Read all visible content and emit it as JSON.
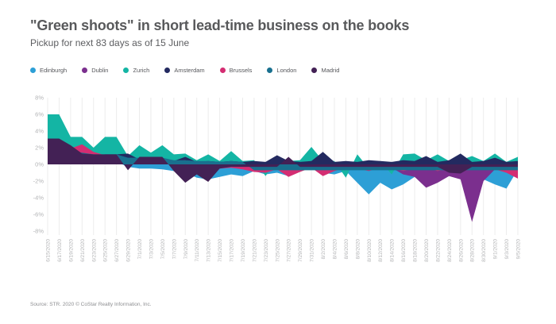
{
  "header": {
    "title": "\"Green shoots\" in short lead-time business on the books",
    "subtitle": "Pickup for next 83 days as of 15 June"
  },
  "source": "Source: STR. 2020 © CoStar Realty Information, Inc.",
  "chart_data": {
    "type": "area",
    "style": "overlapping layered areas (painted in z-order, baseline 0, not stacked)",
    "title": "\"Green shoots\" in short lead-time business on the books",
    "subtitle": "Pickup for next 83 days as of 15 June",
    "xlabel": "",
    "ylabel": "",
    "ylim": [
      -8,
      8
    ],
    "ytick_labels": [
      "8%",
      "6%",
      "4%",
      "2%",
      "0%",
      "-2%",
      "-4%",
      "-6%",
      "-8%"
    ],
    "grid": "vertical gridlines at every x tick, no horizontal gridlines",
    "legend_position": "top-left above plot",
    "x": [
      "6/15/2020",
      "6/17/2020",
      "6/19/2020",
      "6/21/2020",
      "6/23/2020",
      "6/25/2020",
      "6/27/2020",
      "6/29/2020",
      "7/1/2020",
      "7/3/2020",
      "7/5/2020",
      "7/7/2020",
      "7/9/2020",
      "7/11/2020",
      "7/13/2020",
      "7/15/2020",
      "7/17/2020",
      "7/19/2020",
      "7/21/2020",
      "7/23/2020",
      "7/25/2020",
      "7/27/2020",
      "7/29/2020",
      "7/31/2020",
      "8/2/2020",
      "8/4/2020",
      "8/6/2020",
      "8/8/2020",
      "8/10/2020",
      "8/12/2020",
      "8/14/2020",
      "8/16/2020",
      "8/18/2020",
      "8/20/2020",
      "8/22/2020",
      "8/24/2020",
      "8/26/2020",
      "8/28/2020",
      "8/30/2020",
      "9/1/2020",
      "9/3/2020",
      "9/5/2020"
    ],
    "z_order": [
      "Edinburgh",
      "Dublin",
      "Zurich",
      "Amsterdam",
      "Brussels",
      "London",
      "Madrid"
    ],
    "series": [
      {
        "name": "Edinburgh",
        "color": "#2D9FD6",
        "values": [
          0.5,
          0.5,
          0.4,
          0.3,
          0.3,
          0.3,
          0.3,
          -0.3,
          -0.5,
          -0.5,
          -0.6,
          -0.8,
          -1.0,
          -1.6,
          -1.8,
          -1.5,
          -1.2,
          -1.4,
          -0.8,
          -1.2,
          -1.0,
          -1.4,
          -0.8,
          -0.5,
          -1.0,
          -1.2,
          -0.8,
          -2.2,
          -3.6,
          -2.2,
          -3.0,
          -2.4,
          -1.5,
          -0.8,
          -1.5,
          -0.8,
          -1.0,
          -1.5,
          -1.8,
          -2.4,
          -2.9,
          -0.6
        ]
      },
      {
        "name": "Dublin",
        "color": "#7B2F8E",
        "values": [
          2.6,
          2.6,
          2.1,
          1.9,
          1.3,
          1.8,
          1.8,
          0.8,
          0.9,
          0.8,
          0.8,
          0.4,
          0.3,
          0.3,
          0.4,
          0.3,
          0.3,
          0.3,
          -0.7,
          -0.5,
          -0.4,
          -0.4,
          -0.5,
          -0.3,
          -0.4,
          -0.4,
          -0.4,
          -0.4,
          -0.5,
          -0.4,
          -0.4,
          -1.2,
          -1.5,
          -2.8,
          -2.2,
          -1.4,
          -1.8,
          -6.9,
          -2.0,
          -0.6,
          -0.5,
          -0.5
        ]
      },
      {
        "name": "Zurich",
        "color": "#14B5A4",
        "values": [
          6.0,
          6.0,
          3.3,
          3.3,
          2.0,
          3.3,
          3.3,
          1.0,
          2.3,
          1.4,
          2.3,
          1.2,
          1.3,
          0.5,
          1.2,
          0.4,
          1.6,
          0.4,
          0.5,
          -1.4,
          0.6,
          0.4,
          0.5,
          2.1,
          0.4,
          0.4,
          -1.6,
          1.2,
          -0.5,
          0.4,
          -1.2,
          1.2,
          1.3,
          0.5,
          1.2,
          0.4,
          0.5,
          1.0,
          0.4,
          1.3,
          0.3,
          0.9
        ]
      },
      {
        "name": "Amsterdam",
        "color": "#232A60",
        "values": [
          1.6,
          1.6,
          1.5,
          1.2,
          1.0,
          1.2,
          1.2,
          1.3,
          0.6,
          0.8,
          0.5,
          0.4,
          0.9,
          0.3,
          0.4,
          0.3,
          0.4,
          0.3,
          0.4,
          0.3,
          1.1,
          0.4,
          0.3,
          0.4,
          1.5,
          0.3,
          0.4,
          0.3,
          0.5,
          0.4,
          0.3,
          0.5,
          0.4,
          1.0,
          0.3,
          0.5,
          1.3,
          0.3,
          0.4,
          0.8,
          0.3,
          0.4
        ]
      },
      {
        "name": "Brussels",
        "color": "#D42D72",
        "values": [
          1.6,
          1.6,
          1.9,
          2.4,
          1.5,
          1.1,
          1.0,
          0.5,
          0.6,
          0.4,
          0.5,
          0.4,
          0.5,
          -0.4,
          -0.6,
          -0.5,
          -0.4,
          -0.6,
          -0.9,
          -1.0,
          -0.6,
          -1.5,
          -0.9,
          -0.4,
          -1.4,
          -0.8,
          -0.4,
          -0.5,
          -0.8,
          -0.4,
          -0.5,
          -0.8,
          -0.5,
          -0.4,
          -0.8,
          -0.5,
          -0.4,
          -0.5,
          -0.4,
          -0.6,
          -1.0,
          -1.7
        ]
      },
      {
        "name": "London",
        "color": "#19708F",
        "values": [
          2.0,
          2.0,
          1.6,
          1.4,
          1.2,
          1.2,
          1.2,
          0.8,
          0.8,
          0.8,
          0.8,
          0.5,
          0.5,
          0.4,
          0.4,
          0.3,
          0.4,
          0.3,
          -0.7,
          -0.7,
          -0.7,
          -0.7,
          -0.7,
          -0.7,
          -0.7,
          -0.7,
          -0.7,
          -0.7,
          -0.7,
          -0.7,
          -0.7,
          -0.7,
          -0.7,
          -0.7,
          -0.7,
          -0.7,
          -0.7,
          -0.7,
          -0.7,
          -0.7,
          -0.7,
          -0.7
        ]
      },
      {
        "name": "Madrid",
        "color": "#432155",
        "values": [
          3.1,
          3.1,
          2.3,
          1.3,
          1.2,
          1.2,
          1.2,
          -0.7,
          0.9,
          0.9,
          0.9,
          -0.8,
          -2.2,
          -1.2,
          -2.1,
          -0.5,
          -0.3,
          -0.3,
          -0.3,
          -0.3,
          -0.3,
          0.9,
          -0.3,
          -0.3,
          -0.3,
          -0.3,
          -0.3,
          -0.3,
          -0.3,
          -0.3,
          -0.3,
          -0.3,
          -0.3,
          -0.3,
          -0.3,
          -1.0,
          -1.1,
          -0.3,
          -0.3,
          -0.3,
          -0.3,
          -0.3
        ]
      }
    ]
  },
  "colors": {
    "title_text": "#58595b",
    "axis_text": "#b3b4b6",
    "gridline": "#ececec"
  }
}
